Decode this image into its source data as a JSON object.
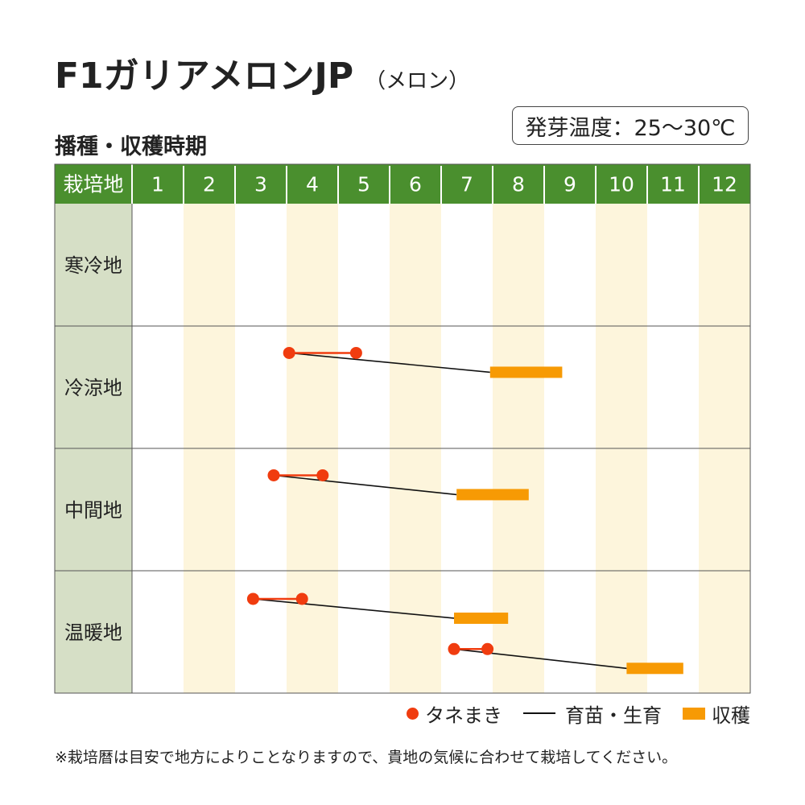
{
  "title": "F1ガリアメロンJP",
  "subtitle": "（メロン）",
  "section_label": "播種・収穫時期",
  "germination_temp": "発芽温度：25～30℃",
  "colors": {
    "header_green": "#4a8f2e",
    "region_bg": "#d6dfc6",
    "stripe_bg": "#fdf5dc",
    "sowing": "#f03c0f",
    "harvest": "#f79a04",
    "growing": "#111111"
  },
  "chart_data": {
    "type": "table",
    "header_label": "栽培地",
    "months": [
      "1",
      "2",
      "3",
      "4",
      "5",
      "6",
      "7",
      "8",
      "9",
      "10",
      "11",
      "12"
    ],
    "regions": [
      {
        "name": "寒冷地",
        "schedules": []
      },
      {
        "name": "冷涼地",
        "schedules": [
          {
            "sow": [
              4.05,
              5.35
            ],
            "harvest": [
              7.95,
              9.35
            ]
          }
        ]
      },
      {
        "name": "中間地",
        "schedules": [
          {
            "sow": [
              3.75,
              4.7
            ],
            "harvest": [
              7.3,
              8.7
            ]
          }
        ]
      },
      {
        "name": "温暖地",
        "schedules": [
          {
            "sow": [
              3.35,
              4.3
            ],
            "harvest": [
              7.25,
              8.3
            ]
          },
          {
            "sow": [
              7.25,
              7.9
            ],
            "harvest": [
              10.6,
              11.7
            ]
          }
        ]
      }
    ]
  },
  "legend": {
    "sowing": "タネまき",
    "growing": "育苗・生育",
    "harvest": "収穫"
  },
  "footnote": "※栽培暦は目安で地方によりことなりますので、貴地の気候に合わせて栽培してください。"
}
